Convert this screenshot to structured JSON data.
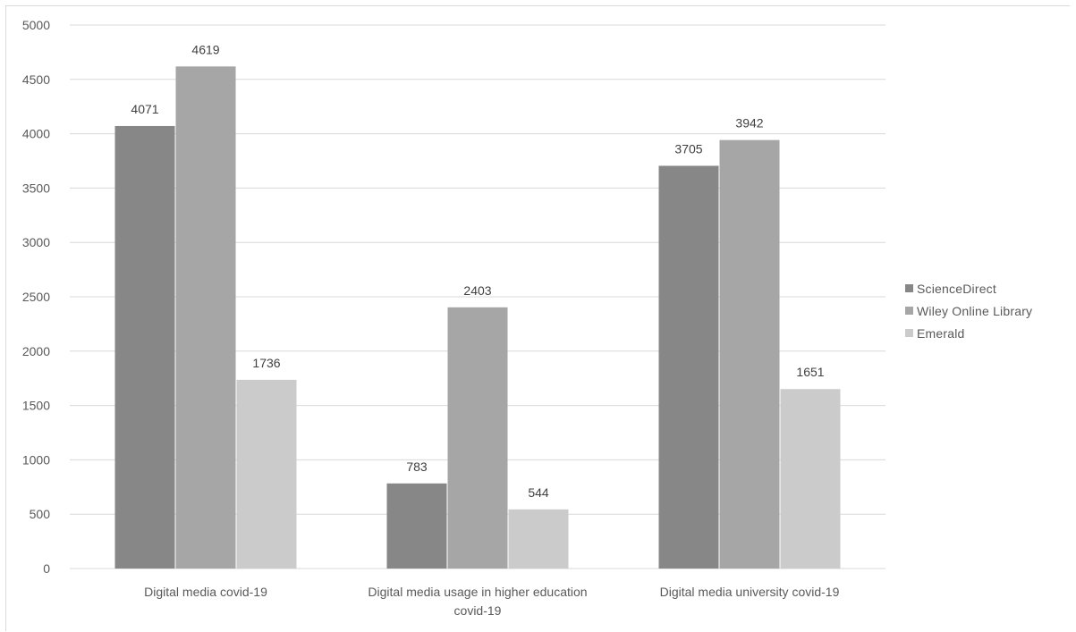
{
  "chart_data": {
    "type": "bar",
    "categories": [
      "Digital media covid-19",
      "Digital media usage in higher education covid-19",
      "Digital media university covid-19"
    ],
    "series": [
      {
        "name": "ScienceDirect",
        "color": "#878787",
        "values": [
          4071,
          783,
          3705
        ]
      },
      {
        "name": "Wiley Online Library",
        "color": "#a6a6a6",
        "values": [
          4619,
          2403,
          3942
        ]
      },
      {
        "name": "Emerald",
        "color": "#cbcbcb",
        "values": [
          1736,
          544,
          1651
        ]
      }
    ],
    "yticks": [
      0,
      500,
      1000,
      1500,
      2000,
      2500,
      3000,
      3500,
      4000,
      4500,
      5000
    ],
    "ylim": [
      0,
      5000
    ],
    "grid": true,
    "legend_position": "right"
  }
}
